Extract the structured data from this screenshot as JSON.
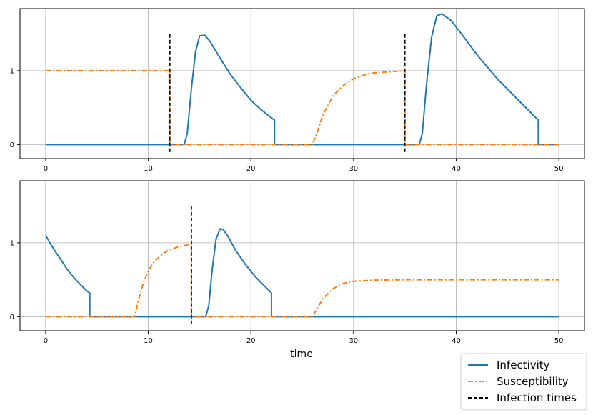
{
  "chart_data": {
    "type": "line",
    "xlabel": "time",
    "legend": {
      "placement": "bottom-right",
      "entries": [
        {
          "label": "Infectivity",
          "color": "#1f77b4",
          "style": "solid"
        },
        {
          "label": "Susceptibility",
          "color": "#ff7f0e",
          "style": "dashdot"
        },
        {
          "label": "Infection times",
          "color": "#000000",
          "style": "dashed"
        }
      ]
    },
    "grid": true,
    "panels": [
      {
        "xlim": [
          -2.5,
          52.5
        ],
        "ylim": [
          -0.19,
          1.84
        ],
        "xticks": [
          "0",
          "10",
          "20",
          "30",
          "40",
          "50"
        ],
        "yticks": [
          "0",
          "1"
        ],
        "infection_times": [
          12.1,
          35.0
        ],
        "infection_marker_range": [
          -0.1,
          1.5
        ],
        "series": [
          {
            "name": "Infectivity",
            "x": [
              0,
              13.5,
              13.8,
              14.2,
              14.6,
              15.0,
              15.5,
              16.0,
              17.0,
              18.0,
              19.0,
              20.0,
              21.0,
              22.3,
              22.3,
              36.4,
              36.7,
              37.1,
              37.6,
              38.1,
              38.6,
              39.5,
              40.5,
              42.0,
              44.0,
              46.0,
              48.0,
              48.0,
              50
            ],
            "y": [
              0,
              0,
              0.15,
              0.75,
              1.25,
              1.47,
              1.48,
              1.4,
              1.17,
              0.95,
              0.77,
              0.6,
              0.47,
              0.33,
              0,
              0,
              0.15,
              0.8,
              1.45,
              1.74,
              1.77,
              1.68,
              1.5,
              1.22,
              0.89,
              0.61,
              0.33,
              0,
              0
            ]
          },
          {
            "name": "Susceptibility",
            "x": [
              0,
              12.1,
              12.1,
              26.0,
              26.5,
              27.0,
              28.0,
              29.0,
              30.0,
              31.0,
              32.0,
              33.0,
              34.0,
              35.0,
              35.0,
              50
            ],
            "y": [
              1,
              1,
              0,
              0,
              0.18,
              0.4,
              0.66,
              0.8,
              0.89,
              0.94,
              0.97,
              0.98,
              0.99,
              1.0,
              0,
              0
            ]
          }
        ]
      },
      {
        "xlim": [
          -2.5,
          52.5
        ],
        "ylim": [
          -0.19,
          1.84
        ],
        "xticks": [
          "0",
          "10",
          "20",
          "30",
          "40",
          "50"
        ],
        "yticks": [
          "0",
          "1"
        ],
        "infection_times": [
          14.2
        ],
        "infection_marker_range": [
          -0.1,
          1.5
        ],
        "series": [
          {
            "name": "Infectivity",
            "x": [
              0,
              0.5,
              1.0,
              1.5,
              2.0,
              2.5,
              3.0,
              3.5,
              4.0,
              4.3,
              4.3,
              15.6,
              15.9,
              16.2,
              16.6,
              17.0,
              17.3,
              17.8,
              18.5,
              19.5,
              20.5,
              21.3,
              22.0,
              22.0,
              50
            ],
            "y": [
              1.1,
              0.98,
              0.87,
              0.77,
              0.66,
              0.57,
              0.49,
              0.42,
              0.35,
              0.32,
              0,
              0,
              0.15,
              0.6,
              1.05,
              1.19,
              1.18,
              1.08,
              0.9,
              0.7,
              0.53,
              0.42,
              0.32,
              0,
              0
            ]
          },
          {
            "name": "Susceptibility",
            "x": [
              0,
              8.7,
              9.0,
              9.5,
              10.0,
              10.5,
              11.0,
              11.5,
              12.0,
              13.0,
              14.2,
              14.2,
              26.0,
              26.5,
              27.0,
              28.0,
              29.0,
              30.0,
              32.0,
              35.0,
              40.0,
              50
            ],
            "y": [
              0,
              0,
              0.2,
              0.45,
              0.62,
              0.73,
              0.8,
              0.86,
              0.9,
              0.95,
              0.98,
              0,
              0,
              0.12,
              0.24,
              0.38,
              0.45,
              0.48,
              0.495,
              0.5,
              0.5,
              0.5
            ]
          }
        ]
      }
    ]
  }
}
